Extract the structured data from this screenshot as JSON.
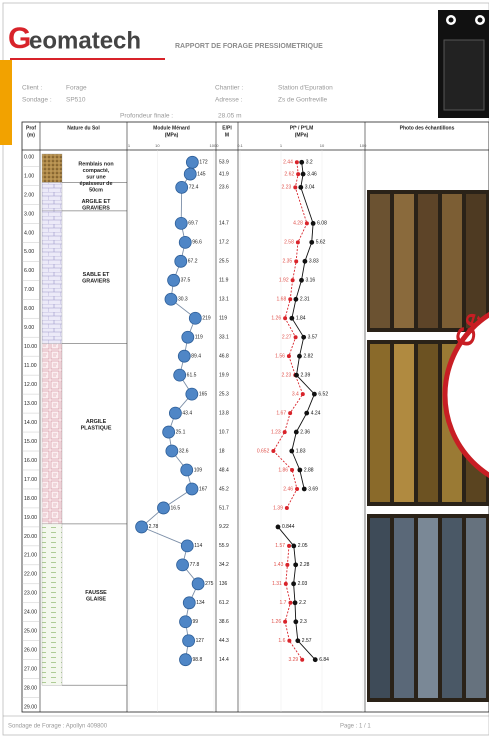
{
  "header": {
    "logo_initial": "G",
    "logo_rest": "eomatech",
    "title": "RAPPORT DE FORAGE PRESSIOMETRIQUE"
  },
  "info": [
    {
      "label": "Client :",
      "value": "Forage"
    },
    {
      "label": "Sondage :",
      "value": "SP510"
    },
    {
      "label": "Chantier :",
      "value": "Station d'Epuration"
    },
    {
      "label": "Adresse :",
      "value": "Zs de Gonfreville"
    },
    {
      "label": "Profondeur finale :",
      "value": "28.05 m"
    }
  ],
  "columns": [
    [
      "Prof",
      "(m)"
    ],
    [
      "Nature du Sol"
    ],
    [
      "Module Ménard",
      "(MPa)"
    ],
    [
      "E/Pl",
      "M"
    ],
    [
      "Pf* / P*LM",
      "(MPa)"
    ],
    [
      "Photo des échantillons"
    ]
  ],
  "module_axis": {
    "xlim": [
      1,
      1000
    ],
    "xticks": [
      1,
      10,
      1000
    ]
  },
  "pressure_axis": {
    "xlim": [
      0.1,
      100
    ],
    "xticks": [
      0.1,
      1,
      10,
      100
    ]
  },
  "depths": [
    "0.00",
    "1.00",
    "2.00",
    "3.00",
    "4.00",
    "5.00",
    "6.00",
    "7.00",
    "8.00",
    "9.00",
    "10.00",
    "11.00",
    "12.00",
    "13.00",
    "14.00",
    "15.00",
    "16.00",
    "17.00",
    "18.00",
    "19.00",
    "20.00",
    "21.00",
    "22.00",
    "23.00",
    "24.00",
    "25.00",
    "26.00",
    "27.00",
    "28.00",
    "29.00"
  ],
  "layers": [
    {
      "lines": [
        "Remblais non",
        "compacté,",
        "sur une",
        "épaisseur de",
        "50cm"
      ]
    },
    {
      "lines": [
        "ARGILE ET",
        "GRAVIERS"
      ]
    },
    {
      "lines": [
        "SABLE ET",
        "GRAVIERS"
      ]
    },
    {
      "lines": [
        "ARGILE",
        "PLASTIQUE"
      ]
    },
    {
      "lines": [
        "FAUSSE",
        "GLAISE"
      ]
    }
  ],
  "tests": {
    "module": [
      172,
      145,
      72.4,
      69.7,
      96.6,
      67.2,
      37.5,
      30.3,
      219,
      119,
      89.4,
      61.5,
      165,
      43.4,
      25.1,
      32.6,
      109,
      167,
      16.5,
      2.78,
      114,
      77.8,
      275,
      134,
      99,
      127,
      98.8
    ],
    "ratio": [
      53.9,
      41.9,
      23.6,
      14.7,
      17.2,
      25.5,
      11.9,
      13.1,
      119,
      33.1,
      46.8,
      19.9,
      25.3,
      13.8,
      10.7,
      18,
      48.4,
      45.2,
      51.7,
      9.22,
      55.9,
      34.2,
      136,
      61.2,
      38.6,
      44.3,
      14.4
    ],
    "plm": [
      3.2,
      3.46,
      3.04,
      6.08,
      5.62,
      3.83,
      3.16,
      2.31,
      1.84,
      3.57,
      2.82,
      2.39,
      6.52,
      4.24,
      2.36,
      1.83,
      2.88,
      3.69,
      null,
      0.844,
      2.05,
      2.28,
      2.03,
      2.2,
      2.3,
      2.57,
      6.84
    ],
    "pf": [
      2.44,
      2.62,
      2.23,
      4.28,
      2.58,
      2.35,
      1.92,
      1.68,
      1.26,
      2.27,
      1.56,
      2.23,
      3.4,
      1.67,
      1.23,
      0.652,
      1.86,
      2.46,
      1.39,
      null,
      1.57,
      1.43,
      1.31,
      1.7,
      1.26,
      1.6,
      3.29
    ]
  },
  "stamp": "Ge",
  "footer": {
    "left": "Sondage de Forage :   Apollyn 409800",
    "right": "Page : 1 / 1"
  }
}
